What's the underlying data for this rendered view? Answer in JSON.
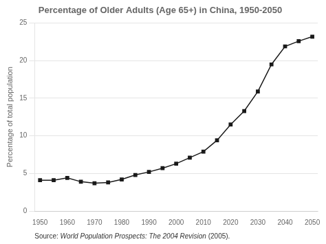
{
  "chart_data": {
    "type": "line",
    "title": "Percentage of Older Adults (Age 65+) in China, 1950-2050",
    "ylabel": "Percentage of total population",
    "source": {
      "normal": "Source: ",
      "italic": "World Population Prospects: The 2004 Revision",
      "end": " (2005)."
    },
    "x": [
      1950,
      1955,
      1960,
      1965,
      1970,
      1975,
      1980,
      1985,
      1990,
      1995,
      2000,
      2005,
      2010,
      2015,
      2020,
      2025,
      2030,
      2035,
      2040,
      2045,
      2050
    ],
    "values": [
      4.1,
      4.1,
      4.4,
      3.9,
      3.7,
      3.8,
      4.2,
      4.8,
      5.2,
      5.7,
      6.3,
      7.1,
      7.9,
      9.4,
      11.5,
      13.3,
      15.9,
      19.5,
      21.9,
      22.6,
      23.2
    ],
    "xlim": [
      1948,
      2052
    ],
    "ylim": [
      0,
      25
    ],
    "xticks": [
      1950,
      1960,
      1970,
      1980,
      1990,
      2000,
      2010,
      2020,
      2030,
      2040,
      2050
    ],
    "yticks": [
      0,
      5,
      10,
      15,
      20,
      25
    ],
    "color": "#1a1a1a",
    "marker": "square",
    "grid": true
  }
}
